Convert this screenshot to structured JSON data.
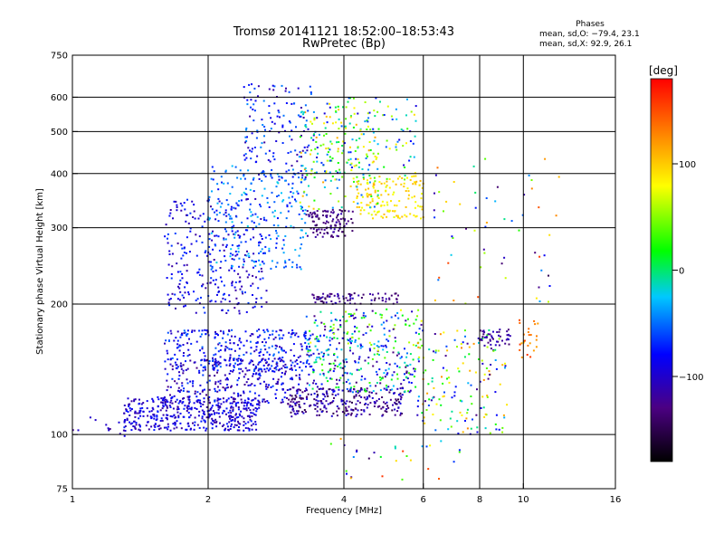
{
  "header": {
    "title": "Tromsø 20141121 18:52:00–18:53:43",
    "subtitle": "RwPretec (Bp)"
  },
  "phases": {
    "title": "Phases",
    "o_stats": "mean, sd,O: −79.4, 23.1",
    "x_stats": "mean, sd,X:  92.9, 26.1"
  },
  "colorbar": {
    "label": "[deg]",
    "min": -180,
    "max": 180,
    "ticks": [
      {
        "value": 100,
        "label": "100"
      },
      {
        "value": 0,
        "label": "0"
      },
      {
        "value": -100,
        "label": "−100"
      }
    ]
  },
  "chart_data": {
    "type": "scatter",
    "xlabel": "Frequency [MHz]",
    "ylabel": "Stationary phase Virtual Height [km]",
    "xscale": "log",
    "yscale": "log",
    "xlim": [
      1,
      16
    ],
    "ylim": [
      75,
      750
    ],
    "xticks": [
      1,
      2,
      4,
      6,
      8,
      10,
      16
    ],
    "yticks": [
      75,
      100,
      200,
      300,
      400,
      500,
      600,
      750
    ],
    "x_gridlines": [
      2,
      4,
      6,
      8,
      10
    ],
    "y_gridlines": [
      100,
      200,
      300,
      400,
      500,
      600
    ],
    "color_by": "phase [deg]",
    "clusters": [
      {
        "x": [
          1.3,
          2.6
        ],
        "y": [
          102,
          122
        ],
        "n": 420,
        "phase": [
          -120,
          -70
        ]
      },
      {
        "x": [
          1.6,
          3.2
        ],
        "y": [
          118,
          150
        ],
        "n": 300,
        "phase": [
          -130,
          -60
        ]
      },
      {
        "x": [
          1.6,
          3.4
        ],
        "y": [
          140,
          175
        ],
        "n": 300,
        "phase": [
          -110,
          -50
        ]
      },
      {
        "x": [
          1.6,
          2.7
        ],
        "y": [
          190,
          350
        ],
        "n": 280,
        "phase": [
          -120,
          -60
        ]
      },
      {
        "x": [
          2.0,
          3.3
        ],
        "y": [
          240,
          420
        ],
        "n": 240,
        "phase": [
          -80,
          -20
        ]
      },
      {
        "x": [
          2.4,
          3.4
        ],
        "y": [
          380,
          650
        ],
        "n": 150,
        "phase": [
          -120,
          -40
        ]
      },
      {
        "x": [
          3.0,
          5.4
        ],
        "y": [
          110,
          128
        ],
        "n": 260,
        "phase": [
          -150,
          -90
        ]
      },
      {
        "x": [
          3.3,
          5.8
        ],
        "y": [
          125,
          155
        ],
        "n": 200,
        "phase": [
          -140,
          40
        ]
      },
      {
        "x": [
          3.3,
          6.0
        ],
        "y": [
          155,
          195
        ],
        "n": 180,
        "phase": [
          -130,
          80
        ]
      },
      {
        "x": [
          3.4,
          5.3
        ],
        "y": [
          200,
          212
        ],
        "n": 80,
        "phase": [
          -150,
          -100
        ]
      },
      {
        "x": [
          3.3,
          4.2
        ],
        "y": [
          285,
          330
        ],
        "n": 110,
        "phase": [
          -150,
          -110
        ]
      },
      {
        "x": [
          4.2,
          6.0
        ],
        "y": [
          315,
          395
        ],
        "n": 140,
        "phase": [
          70,
          110
        ]
      },
      {
        "x": [
          3.2,
          4.8
        ],
        "y": [
          330,
          560
        ],
        "n": 140,
        "phase": [
          -60,
          120
        ]
      },
      {
        "x": [
          3.4,
          5.8
        ],
        "y": [
          380,
          600
        ],
        "n": 140,
        "phase": [
          -100,
          100
        ]
      },
      {
        "x": [
          5.8,
          9.2
        ],
        "y": [
          100,
          175
        ],
        "n": 160,
        "phase": [
          -130,
          130
        ]
      },
      {
        "x": [
          8.0,
          9.4
        ],
        "y": [
          160,
          175
        ],
        "n": 45,
        "phase": [
          -140,
          -100
        ]
      },
      {
        "x": [
          9.8,
          10.8
        ],
        "y": [
          150,
          185
        ],
        "n": 25,
        "phase": [
          100,
          160
        ]
      },
      {
        "x": [
          6.0,
          12.0
        ],
        "y": [
          200,
          440
        ],
        "n": 60,
        "phase": [
          -150,
          170
        ]
      },
      {
        "x": [
          3.6,
          7.5
        ],
        "y": [
          78,
          98
        ],
        "n": 30,
        "phase": [
          -160,
          160
        ]
      },
      {
        "x": [
          1.0,
          1.5
        ],
        "y": [
          96,
          110
        ],
        "n": 12,
        "phase": [
          -130,
          -90
        ]
      }
    ]
  }
}
